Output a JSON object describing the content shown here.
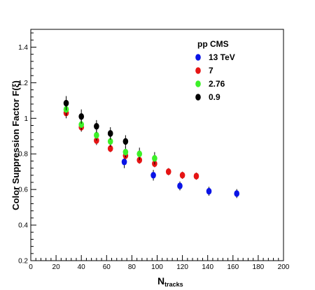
{
  "chart_data": {
    "type": "scatter",
    "xlabel": "N",
    "xlabel_sub": "tracks",
    "ylabel": "Color Suppression Factor F(ξ)",
    "xlim": [
      0,
      200
    ],
    "ylim": [
      0.2,
      1.5
    ],
    "x_ticks": [
      0,
      20,
      40,
      60,
      80,
      100,
      120,
      140,
      160,
      180,
      200
    ],
    "y_ticks": [
      0.2,
      0.4,
      0.6,
      0.8,
      1,
      1.2,
      1.4
    ],
    "grid": false,
    "legend_title": "pp CMS",
    "legend_position": "top-right",
    "series": [
      {
        "name": "13 TeV",
        "color": "#0a14e6",
        "points": [
          {
            "x": 74,
            "y": 0.755,
            "err": 0.035
          },
          {
            "x": 97,
            "y": 0.68,
            "err": 0.03
          },
          {
            "x": 118,
            "y": 0.62,
            "err": 0.025
          },
          {
            "x": 141,
            "y": 0.59,
            "err": 0.025
          },
          {
            "x": 163,
            "y": 0.577,
            "err": 0.025
          }
        ]
      },
      {
        "name": "7",
        "color": "#e61414",
        "points": [
          {
            "x": 28,
            "y": 1.03,
            "err": 0.03
          },
          {
            "x": 40,
            "y": 0.95,
            "err": 0.025
          },
          {
            "x": 52,
            "y": 0.875,
            "err": 0.025
          },
          {
            "x": 63,
            "y": 0.83,
            "err": 0.02
          },
          {
            "x": 75,
            "y": 0.79,
            "err": 0.02
          },
          {
            "x": 86,
            "y": 0.765,
            "err": 0.02
          },
          {
            "x": 98,
            "y": 0.745,
            "err": 0.02
          },
          {
            "x": 109,
            "y": 0.7,
            "err": 0.02
          },
          {
            "x": 120,
            "y": 0.68,
            "err": 0.02
          },
          {
            "x": 131,
            "y": 0.675,
            "err": 0.02
          }
        ]
      },
      {
        "name": "2.76",
        "color": "#3cf028",
        "points": [
          {
            "x": 28,
            "y": 1.05,
            "err": 0.035
          },
          {
            "x": 40,
            "y": 0.965,
            "err": 0.03
          },
          {
            "x": 52,
            "y": 0.905,
            "err": 0.03
          },
          {
            "x": 63,
            "y": 0.87,
            "err": 0.03
          },
          {
            "x": 75,
            "y": 0.81,
            "err": 0.03
          },
          {
            "x": 86,
            "y": 0.8,
            "err": 0.035
          },
          {
            "x": 98,
            "y": 0.775,
            "err": 0.035
          }
        ]
      },
      {
        "name": "0.9",
        "color": "#000000",
        "points": [
          {
            "x": 28,
            "y": 1.085,
            "err": 0.04
          },
          {
            "x": 40,
            "y": 1.01,
            "err": 0.04
          },
          {
            "x": 52,
            "y": 0.955,
            "err": 0.035
          },
          {
            "x": 63,
            "y": 0.915,
            "err": 0.035
          },
          {
            "x": 75,
            "y": 0.87,
            "err": 0.035
          }
        ]
      }
    ]
  }
}
